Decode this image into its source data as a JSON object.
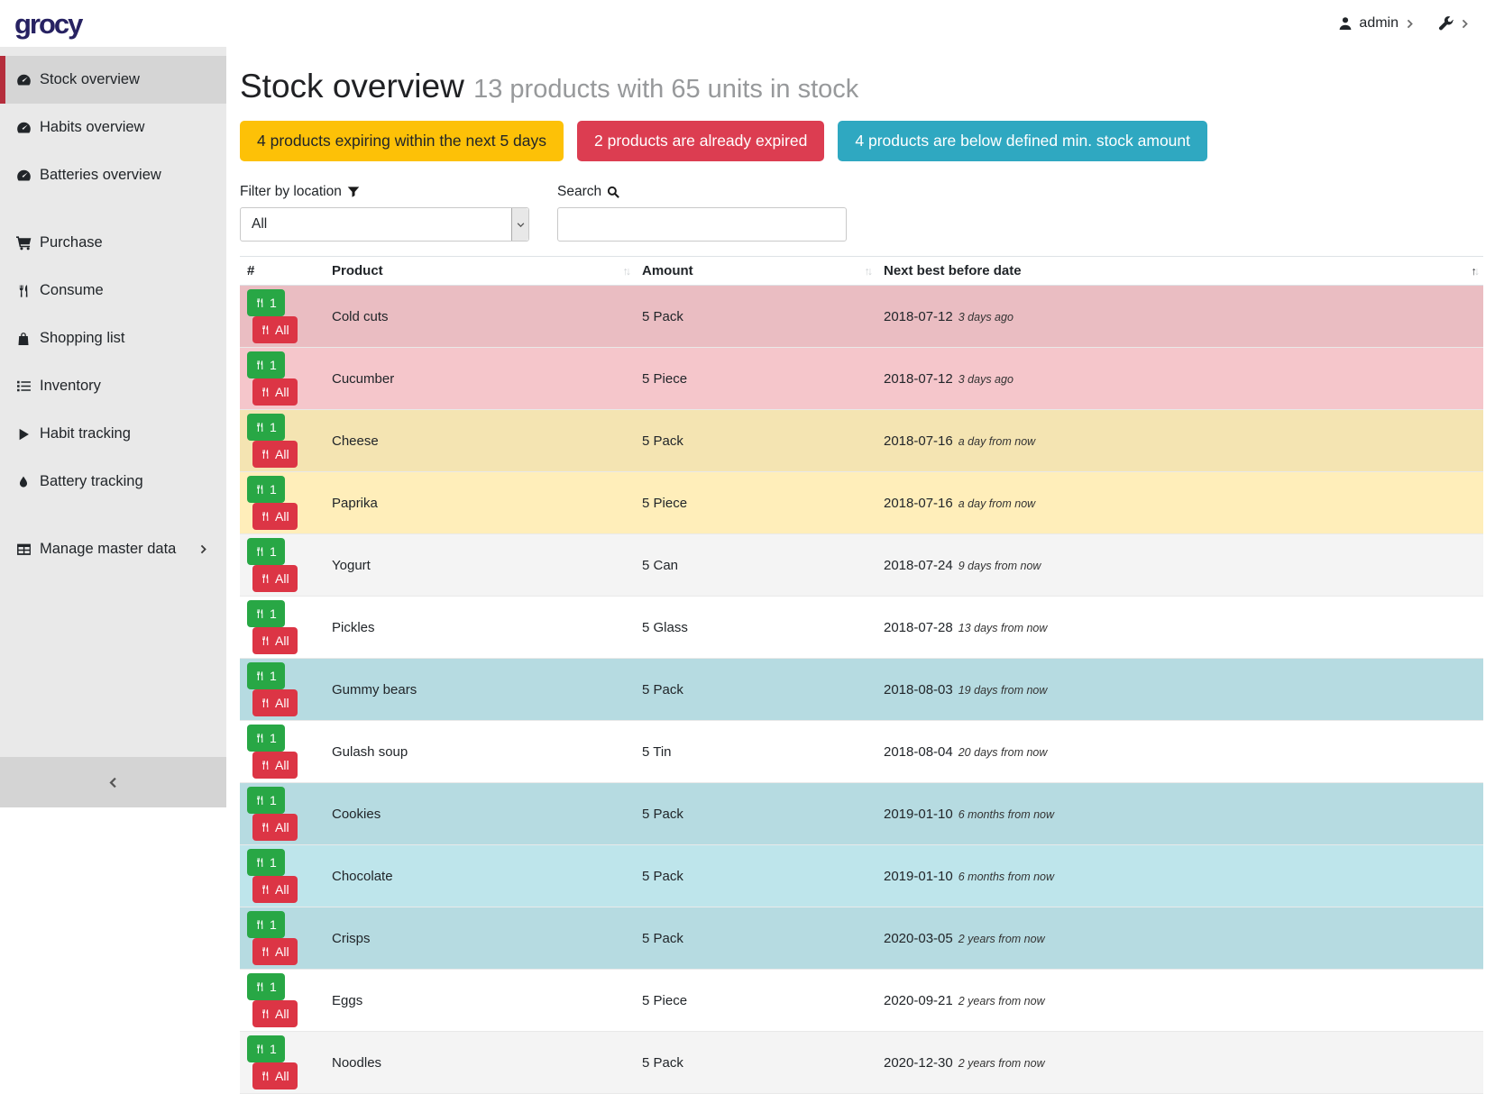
{
  "navbar": {
    "logo_text": "grocy",
    "user_label": "admin"
  },
  "sidebar": {
    "groups": [
      {
        "items": [
          {
            "icon": "tachometer",
            "label": "Stock overview",
            "active": true
          },
          {
            "icon": "tachometer",
            "label": "Habits overview",
            "active": false
          },
          {
            "icon": "tachometer",
            "label": "Batteries overview",
            "active": false
          }
        ]
      },
      {
        "items": [
          {
            "icon": "cart",
            "label": "Purchase",
            "active": false
          },
          {
            "icon": "cutlery",
            "label": "Consume",
            "active": false
          },
          {
            "icon": "shopping-bag",
            "label": "Shopping list",
            "active": false
          },
          {
            "icon": "list",
            "label": "Inventory",
            "active": false
          },
          {
            "icon": "play",
            "label": "Habit tracking",
            "active": false
          },
          {
            "icon": "tint",
            "label": "Battery tracking",
            "active": false
          }
        ]
      },
      {
        "items": [
          {
            "icon": "table",
            "label": "Manage master data",
            "active": false,
            "chevron": true
          }
        ]
      }
    ]
  },
  "header": {
    "title": "Stock overview",
    "subtitle": "13 products with 65 units in stock"
  },
  "alerts": [
    {
      "name": "expiring-alert",
      "text": "4 products expiring within the next 5 days",
      "color": "#fdc107",
      "text_color": "#212529"
    },
    {
      "name": "expired-alert",
      "text": "2 products are already expired",
      "color": "#dc3d51",
      "text_color": "#ffffff"
    },
    {
      "name": "below-min-stock-alert",
      "text": "4 products are below defined min. stock amount",
      "color": "#2fa8c1",
      "text_color": "#ffffff"
    }
  ],
  "filters": {
    "location_label": "Filter by location",
    "location_value": "All",
    "search_label": "Search",
    "search_value": ""
  },
  "table": {
    "columns": [
      {
        "label": "#",
        "sortable": false,
        "sort": null
      },
      {
        "label": "Product",
        "sortable": true,
        "sort": null
      },
      {
        "label": "Amount",
        "sortable": true,
        "sort": null
      },
      {
        "label": "Next best before date",
        "sortable": true,
        "sort": "asc"
      }
    ],
    "consume_one_label": "1",
    "consume_all_label": "All",
    "rows": [
      {
        "product": "Cold cuts",
        "amount": "5 Pack",
        "date": "2018-07-12",
        "timeago": "3 days ago",
        "variant": "danger"
      },
      {
        "product": "Cucumber",
        "amount": "5 Piece",
        "date": "2018-07-12",
        "timeago": "3 days ago",
        "variant": "danger"
      },
      {
        "product": "Cheese",
        "amount": "5 Pack",
        "date": "2018-07-16",
        "timeago": "a day from now",
        "variant": "warning"
      },
      {
        "product": "Paprika",
        "amount": "5 Piece",
        "date": "2018-07-16",
        "timeago": "a day from now",
        "variant": "warning"
      },
      {
        "product": "Yogurt",
        "amount": "5 Can",
        "date": "2018-07-24",
        "timeago": "9 days from now",
        "variant": "none"
      },
      {
        "product": "Pickles",
        "amount": "5 Glass",
        "date": "2018-07-28",
        "timeago": "13 days from now",
        "variant": "none"
      },
      {
        "product": "Gummy bears",
        "amount": "5 Pack",
        "date": "2018-08-03",
        "timeago": "19 days from now",
        "variant": "info"
      },
      {
        "product": "Gulash soup",
        "amount": "5 Tin",
        "date": "2018-08-04",
        "timeago": "20 days from now",
        "variant": "none"
      },
      {
        "product": "Cookies",
        "amount": "5 Pack",
        "date": "2019-01-10",
        "timeago": "6 months from now",
        "variant": "info"
      },
      {
        "product": "Chocolate",
        "amount": "5 Pack",
        "date": "2019-01-10",
        "timeago": "6 months from now",
        "variant": "info"
      },
      {
        "product": "Crisps",
        "amount": "5 Pack",
        "date": "2020-03-05",
        "timeago": "2 years from now",
        "variant": "info"
      },
      {
        "product": "Eggs",
        "amount": "5 Piece",
        "date": "2020-09-21",
        "timeago": "2 years from now",
        "variant": "none"
      },
      {
        "product": "Noodles",
        "amount": "5 Pack",
        "date": "2020-12-30",
        "timeago": "2 years from now",
        "variant": "none"
      }
    ]
  },
  "colors": {
    "logo": "#272262",
    "sidebar_bg": "#e9e9e9",
    "sidebar_active_bg": "#d5d5d5",
    "sidebar_active_border": "#b52e3c",
    "row_danger": "#f5c6cb",
    "row_warning": "#ffeeba",
    "row_info": "#bee5eb",
    "btn_consume_one": "#28a745",
    "btn_consume_all": "#dc3545"
  }
}
